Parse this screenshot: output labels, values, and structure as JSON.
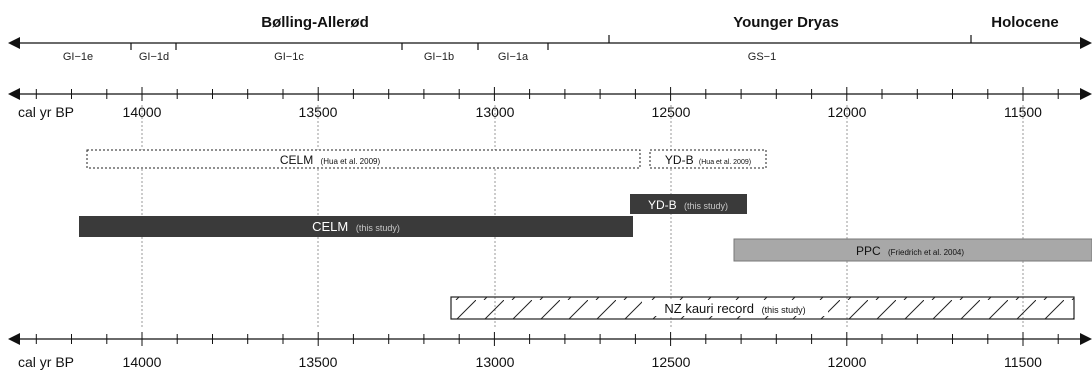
{
  "periods": [
    {
      "label": "Bølling-Allerød"
    },
    {
      "label": "Younger Dryas"
    },
    {
      "label": "Holocene"
    }
  ],
  "stages": [
    {
      "label": "GI−1e"
    },
    {
      "label": "GI−1d"
    },
    {
      "label": "GI−1c"
    },
    {
      "label": "GI−1b"
    },
    {
      "label": "GI−1a"
    },
    {
      "label": "GS−1"
    }
  ],
  "axis": {
    "unit_label": "cal yr BP",
    "ticks": [
      {
        "value": 14000,
        "label": "14000"
      },
      {
        "value": 13500,
        "label": "13500"
      },
      {
        "value": 13000,
        "label": "13000"
      },
      {
        "value": 12500,
        "label": "12500"
      },
      {
        "value": 12000,
        "label": "12000"
      },
      {
        "value": 11500,
        "label": "11500"
      }
    ]
  },
  "records": [
    {
      "label": "CELM",
      "source": "(Hua et al. 2009)",
      "style": "dotted"
    },
    {
      "label": "YD-B",
      "source": "(Hua et al. 2009)",
      "style": "dotted"
    },
    {
      "label": "YD-B",
      "source": "(this study)",
      "style": "dark"
    },
    {
      "label": "CELM",
      "source": "(this study)",
      "style": "dark"
    },
    {
      "label": "PPC",
      "source": "(Friedrich et al. 2004)",
      "style": "grey"
    },
    {
      "label": "NZ kauri record",
      "source": "(this study)",
      "style": "hatched"
    }
  ],
  "colors": {
    "dark_bar": "#3a3a3a",
    "grey_bar": "#a8a8a8",
    "line": "#111111",
    "gridline": "#9a9a9a",
    "dark_bar_source_text": "#c8c8c8"
  }
}
